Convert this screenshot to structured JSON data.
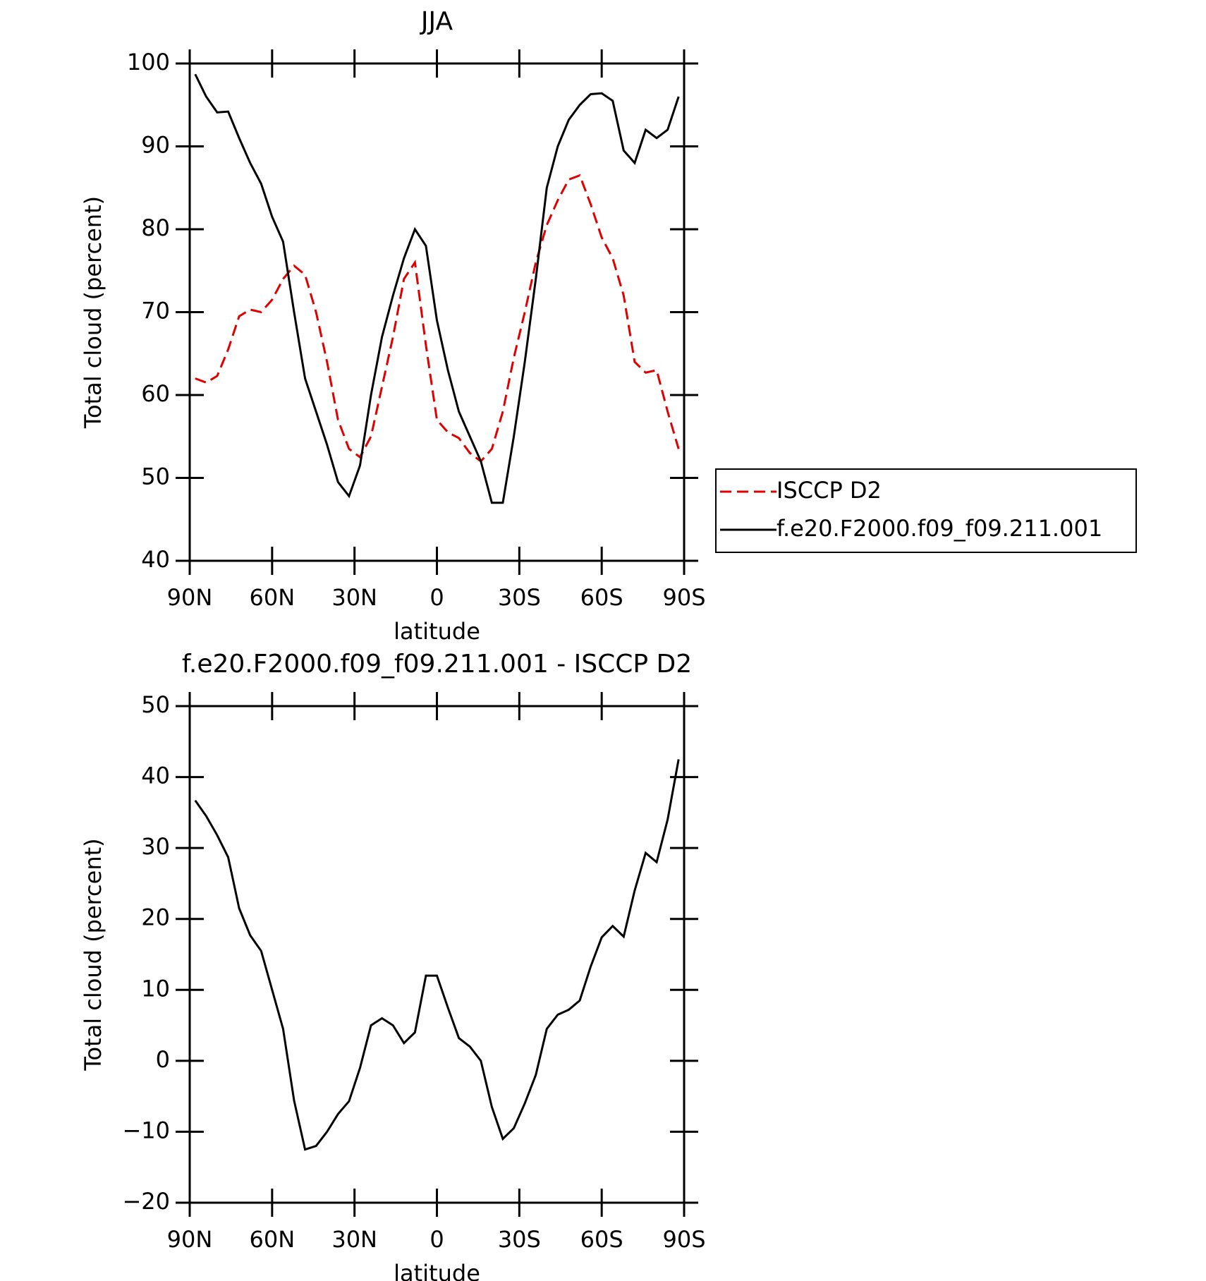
{
  "chart_data": [
    {
      "type": "line",
      "title": "JJA",
      "xlabel": "latitude",
      "ylabel": "Total cloud (percent)",
      "x": [
        88,
        84,
        80,
        76,
        72,
        68,
        64,
        60,
        56,
        52,
        48,
        44,
        40,
        36,
        32,
        28,
        24,
        20,
        16,
        12,
        8,
        4,
        0,
        -4,
        -8,
        -12,
        -16,
        -20,
        -24,
        -28,
        -32,
        -36,
        -40,
        -44,
        -48,
        -52,
        -56,
        -60,
        -64,
        -68,
        -72,
        -76,
        -80,
        -84,
        -88
      ],
      "xlim": [
        90,
        -90
      ],
      "xticks": [
        {
          "value": 90,
          "label": "90N"
        },
        {
          "value": 60,
          "label": "60N"
        },
        {
          "value": 30,
          "label": "30N"
        },
        0,
        {
          "value": -30,
          "label": "30S"
        },
        {
          "value": -60,
          "label": "60S"
        },
        {
          "value": -90,
          "label": "90S"
        }
      ],
      "ylim": [
        40,
        100
      ],
      "yticks": [
        40,
        50,
        60,
        70,
        80,
        90,
        100
      ],
      "legend": "right",
      "series": [
        {
          "name": "ISCCP D2",
          "color": "#e00000",
          "dashed": true,
          "values": [
            62,
            61.5,
            62.3,
            65.5,
            69.5,
            70.3,
            70,
            71.5,
            74,
            75.6,
            74.5,
            70,
            64,
            57,
            53.5,
            52.5,
            55,
            61,
            67,
            74,
            76,
            66,
            57,
            55.5,
            54.8,
            53,
            52,
            53.5,
            58,
            64.5,
            70,
            76,
            80.5,
            83.5,
            86,
            86.5,
            83,
            79,
            76.5,
            72,
            64,
            62.7,
            63,
            58,
            53.5
          ]
        },
        {
          "name": "f.e20.F2000.f09_f09.211.001",
          "color": "#000000",
          "dashed": false,
          "values": [
            98.7,
            96,
            94.1,
            94.2,
            91,
            88,
            85.5,
            81.5,
            78.5,
            70,
            62,
            58,
            54,
            49.5,
            47.8,
            51.5,
            60,
            67,
            72,
            76.5,
            80,
            78,
            69,
            63,
            58,
            55,
            52,
            47,
            47,
            55,
            64,
            74,
            85,
            90,
            93.2,
            95,
            96.3,
            96.4,
            95.5,
            89.5,
            88,
            92,
            91,
            92,
            96
          ]
        }
      ]
    },
    {
      "type": "line",
      "title": "f.e20.F2000.f09_f09.211.001 - ISCCP D2",
      "xlabel": "latitude",
      "ylabel": "Total cloud (percent)",
      "x": [
        88,
        84,
        80,
        76,
        72,
        68,
        64,
        60,
        56,
        52,
        48,
        44,
        40,
        36,
        32,
        28,
        24,
        20,
        16,
        12,
        8,
        4,
        0,
        -4,
        -8,
        -12,
        -16,
        -20,
        -24,
        -28,
        -32,
        -36,
        -40,
        -44,
        -48,
        -52,
        -56,
        -60,
        -64,
        -68,
        -72,
        -76,
        -80,
        -84,
        -88
      ],
      "xlim": [
        90,
        -90
      ],
      "xticks": [
        {
          "value": 90,
          "label": "90N"
        },
        {
          "value": 60,
          "label": "60N"
        },
        {
          "value": 30,
          "label": "30N"
        },
        0,
        {
          "value": -30,
          "label": "30S"
        },
        {
          "value": -60,
          "label": "60S"
        },
        {
          "value": -90,
          "label": "90S"
        }
      ],
      "ylim": [
        -20,
        50
      ],
      "yticks": [
        {
          "value": -20,
          "label": "−20"
        },
        {
          "value": -10,
          "label": "−10"
        },
        0,
        10,
        20,
        30,
        40,
        50
      ],
      "series": [
        {
          "color": "#000000",
          "dashed": false,
          "values": [
            36.7,
            34.5,
            31.8,
            28.7,
            21.5,
            17.7,
            15.5,
            10,
            4.5,
            -5.6,
            -12.5,
            -12,
            -10,
            -7.5,
            -5.7,
            -1,
            5,
            6,
            5,
            2.5,
            4,
            12,
            12,
            7.5,
            3.2,
            2,
            0,
            -6.5,
            -11,
            -9.5,
            -6,
            -2,
            4.5,
            6.5,
            7.2,
            8.5,
            13.3,
            17.4,
            19,
            17.5,
            24,
            29.3,
            28,
            34,
            42.5
          ]
        }
      ]
    }
  ]
}
